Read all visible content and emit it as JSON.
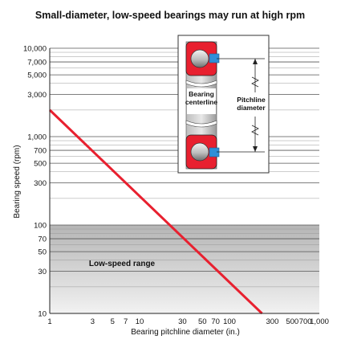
{
  "chart_data": {
    "type": "line",
    "title": "Small-diameter, low-speed bearings may run at high rpm",
    "xlabel": "Bearing pitchline diameter (in.)",
    "ylabel": "Bearing speed (rpm)",
    "x_scale": "log",
    "y_scale": "log",
    "xlim": [
      1,
      1000
    ],
    "ylim": [
      10,
      10000
    ],
    "x_ticks": [
      1,
      3,
      5,
      7,
      10,
      30,
      50,
      70,
      100,
      300,
      500,
      700,
      1000
    ],
    "x_tick_labels": [
      "1",
      "3",
      "5",
      "7",
      "10",
      "30",
      "50",
      "70",
      "100",
      "300",
      "500",
      "700",
      "1,000"
    ],
    "y_ticks": [
      10,
      30,
      50,
      70,
      100,
      300,
      500,
      700,
      1000,
      3000,
      5000,
      7000,
      10000
    ],
    "y_tick_labels": [
      "10",
      "30",
      "50",
      "70",
      "100",
      "300",
      "500",
      "700",
      "1,000",
      "3,000",
      "5,000",
      "7,000",
      "10,000"
    ],
    "y_minor_gridlines": [
      20,
      40,
      60,
      80,
      90,
      200,
      400,
      600,
      800,
      900,
      2000,
      4000,
      6000,
      8000,
      9000
    ],
    "grid": "horizontal",
    "series": [
      {
        "x": [
          1,
          230
        ],
        "y": [
          2000,
          10
        ],
        "color": "#e8202f"
      }
    ],
    "shaded_region": {
      "label": "Low-speed range",
      "y_range": [
        10,
        100
      ]
    },
    "inset": {
      "label_centerline": [
        "Bearing",
        "centerline"
      ],
      "label_pitchline": [
        "Pitchline",
        "diameter"
      ]
    }
  },
  "colors": {
    "line": "#e8202f",
    "bearing_race": "#e8202f",
    "seal": "#2f8fd8",
    "grid": "#9a9a9a",
    "shade_top": "#b5b5b5",
    "shade_bottom": "#f2f2f2"
  }
}
